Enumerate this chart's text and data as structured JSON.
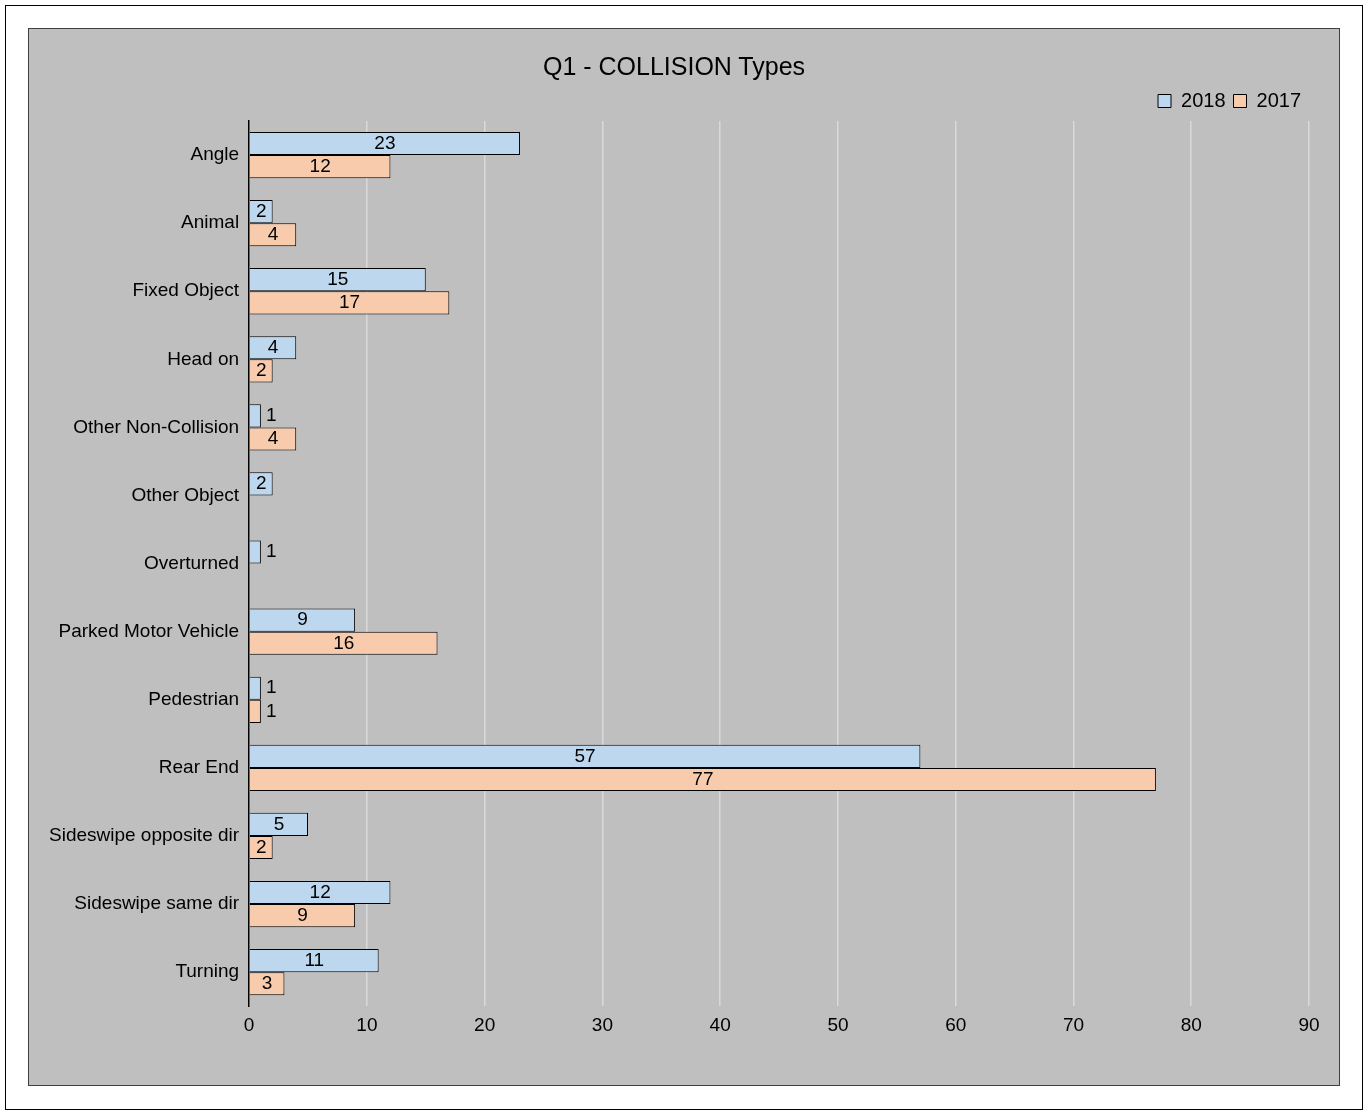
{
  "chart_data": {
    "type": "bar",
    "orientation": "horizontal",
    "title": "Q1 - COLLISION Types",
    "categories": [
      "Angle",
      "Animal",
      "Fixed Object",
      "Head on",
      "Other Non-Collision",
      "Other Object",
      "Overturned",
      "Parked Motor Vehicle",
      "Pedestrian",
      "Rear End",
      "Sideswipe opposite dir",
      "Sideswipe same dir",
      "Turning"
    ],
    "series": [
      {
        "name": "2018",
        "color": "#bdd7ee",
        "values": [
          23,
          2,
          15,
          4,
          1,
          2,
          1,
          9,
          1,
          57,
          5,
          12,
          11
        ]
      },
      {
        "name": "2017",
        "color": "#f8cbad",
        "values": [
          12,
          4,
          17,
          2,
          4,
          null,
          null,
          16,
          1,
          77,
          2,
          9,
          3
        ]
      }
    ],
    "xlim": [
      0,
      90
    ],
    "xticks": [
      0,
      10,
      20,
      30,
      40,
      50,
      60,
      70,
      80,
      90
    ],
    "grid": "x",
    "legend": "top right",
    "data_labels": true
  }
}
